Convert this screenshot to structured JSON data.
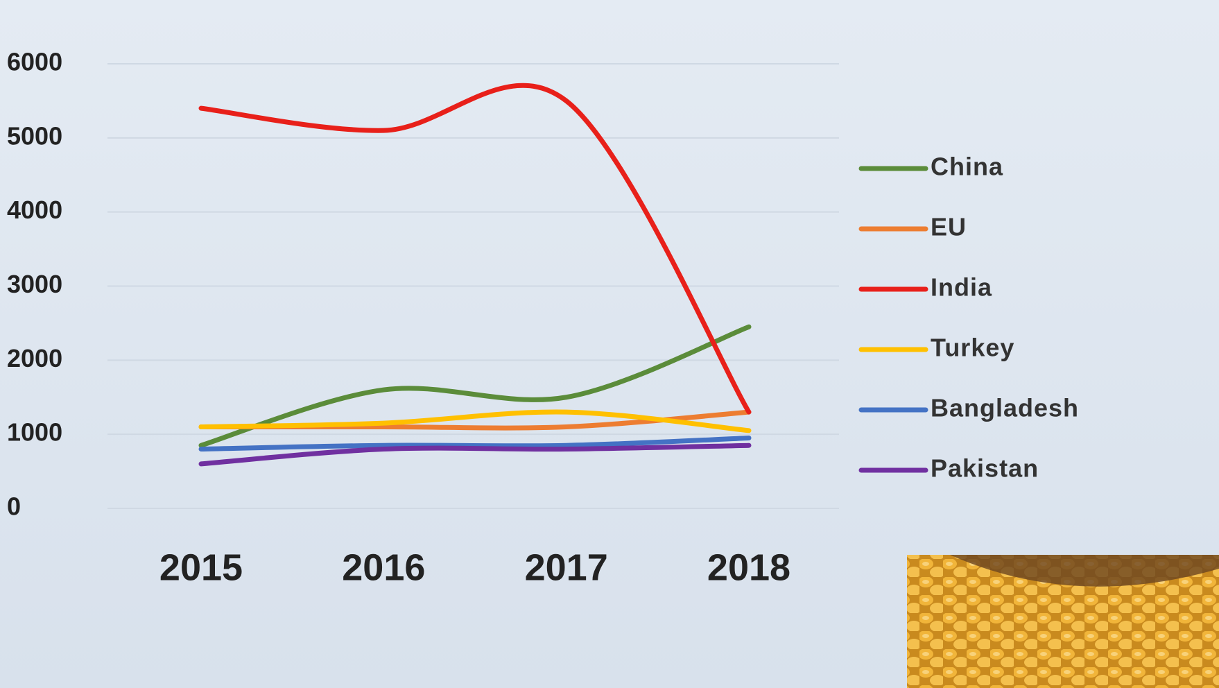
{
  "chart_data": {
    "type": "line",
    "categories": [
      "2015",
      "2016",
      "2017",
      "2018"
    ],
    "series": [
      {
        "name": "China",
        "color": "#5b8c3a",
        "values": [
          850,
          1600,
          1500,
          2450
        ]
      },
      {
        "name": "EU",
        "color": "#ed7d31",
        "values": [
          1100,
          1100,
          1100,
          1300
        ]
      },
      {
        "name": "India",
        "color": "#e8201a",
        "values": [
          5400,
          5100,
          5500,
          1300
        ]
      },
      {
        "name": "Turkey",
        "color": "#ffc000",
        "values": [
          1100,
          1150,
          1300,
          1050
        ]
      },
      {
        "name": "Bangladesh",
        "color": "#4472c4",
        "values": [
          800,
          850,
          850,
          950
        ]
      },
      {
        "name": "Pakistan",
        "color": "#7030a0",
        "values": [
          600,
          800,
          800,
          850
        ]
      }
    ],
    "ylim": [
      0,
      6000
    ],
    "yticks": [
      0,
      1000,
      2000,
      3000,
      4000,
      5000,
      6000
    ],
    "grid": true,
    "legend": "right",
    "smooth": true
  }
}
